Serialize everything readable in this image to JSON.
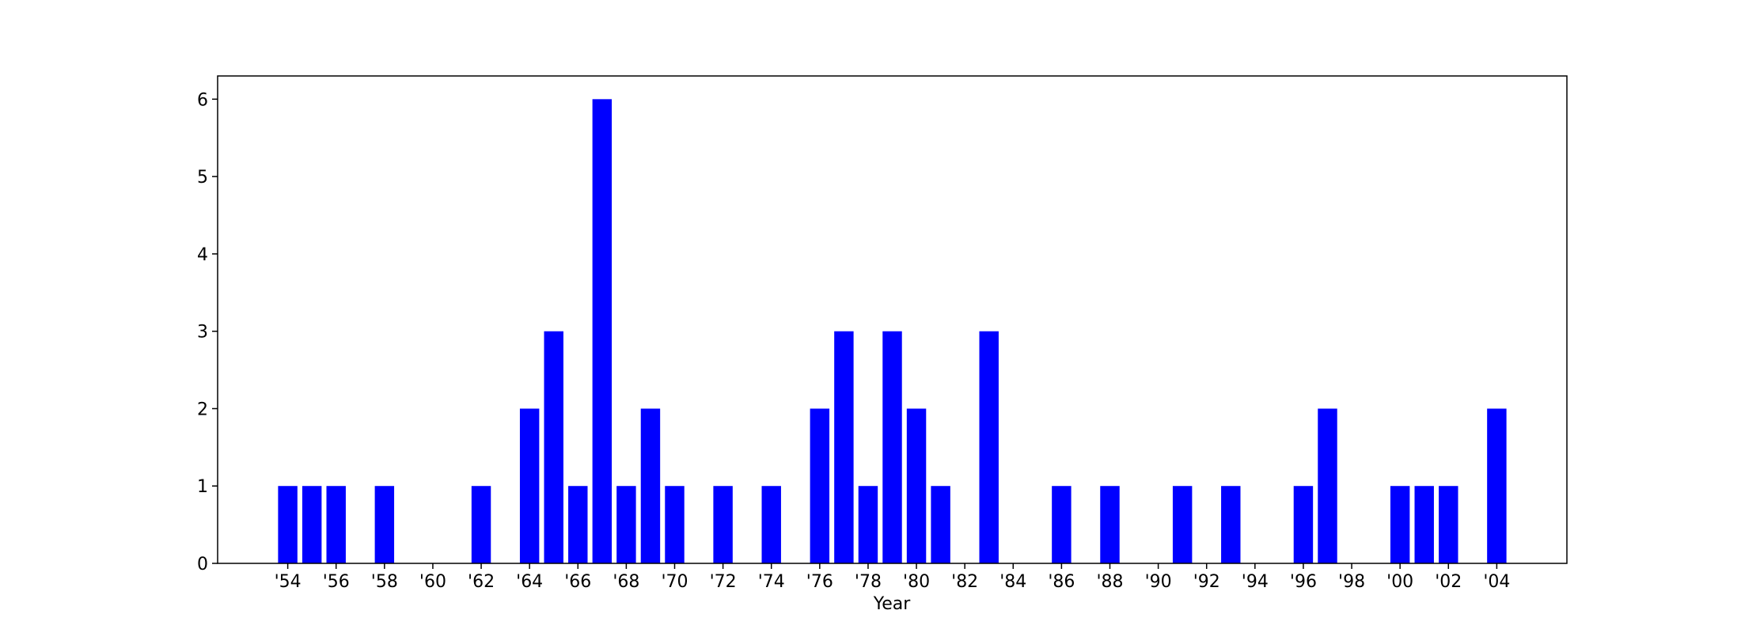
{
  "chart_data": {
    "type": "bar",
    "title": "",
    "xlabel": "Year",
    "ylabel": "",
    "ylim": [
      0,
      6.3
    ],
    "xlim": [
      1951.1,
      2006.9
    ],
    "grid": false,
    "bar_color": "#0000ff",
    "x": [
      1954,
      1955,
      1956,
      1958,
      1962,
      1964,
      1965,
      1966,
      1967,
      1968,
      1969,
      1970,
      1972,
      1974,
      1976,
      1977,
      1978,
      1979,
      1980,
      1981,
      1983,
      1986,
      1988,
      1991,
      1993,
      1996,
      1997,
      2000,
      2001,
      2002,
      2004
    ],
    "values": [
      1,
      1,
      1,
      1,
      1,
      2,
      3,
      1,
      6,
      1,
      2,
      1,
      1,
      1,
      2,
      3,
      1,
      3,
      2,
      1,
      3,
      1,
      1,
      1,
      1,
      1,
      2,
      1,
      1,
      1,
      2
    ],
    "x_ticks": [
      1954,
      1956,
      1958,
      1960,
      1962,
      1964,
      1966,
      1968,
      1970,
      1972,
      1974,
      1976,
      1978,
      1980,
      1982,
      1984,
      1986,
      1988,
      1990,
      1992,
      1994,
      1996,
      1998,
      2000,
      2002,
      2004
    ],
    "x_tick_labels": [
      "'54",
      "'56",
      "'58",
      "'60",
      "'62",
      "'64",
      "'66",
      "'68",
      "'70",
      "'72",
      "'74",
      "'76",
      "'78",
      "'80",
      "'82",
      "'84",
      "'86",
      "'88",
      "'90",
      "'92",
      "'94",
      "'96",
      "'98",
      "'00",
      "'02",
      "'04"
    ],
    "y_ticks": [
      0,
      1,
      2,
      3,
      4,
      5,
      6
    ],
    "y_tick_labels": [
      "0",
      "1",
      "2",
      "3",
      "4",
      "5",
      "6"
    ]
  }
}
